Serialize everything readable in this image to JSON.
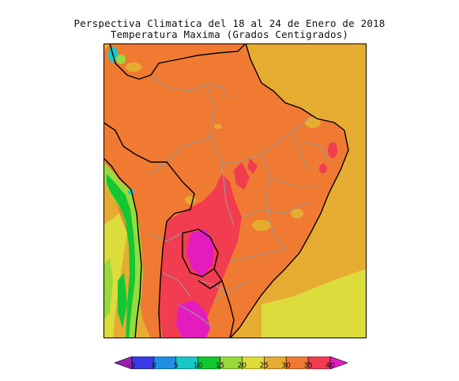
{
  "title_line1": "Perspectiva Climatica del 18 al 24 de Enero de 2018",
  "title_line2": "Temperatura Maxima (Grados Centigrados)",
  "legend": {
    "ticks": [
      "-5",
      "0",
      "5",
      "10",
      "15",
      "20",
      "25",
      "30",
      "35",
      "40"
    ],
    "colors": [
      "#9a1fb0",
      "#3a3ae8",
      "#1f8fe6",
      "#16c8c8",
      "#12c832",
      "#98da3c",
      "#dcdc3c",
      "#e6ac32",
      "#f07a32",
      "#f23c50",
      "#e41cbf"
    ]
  },
  "map_colors": {
    "ocean_north": "#e6ac32",
    "land_main": "#f07a32",
    "hot": "#f23c50",
    "very_hot": "#e41cbf",
    "warm": "#e6ac32",
    "mild": "#dcdc3c",
    "cool": "#98da3c",
    "cold": "#12c832",
    "border_line": "#9a9a9a",
    "coast_line": "#000000"
  }
}
